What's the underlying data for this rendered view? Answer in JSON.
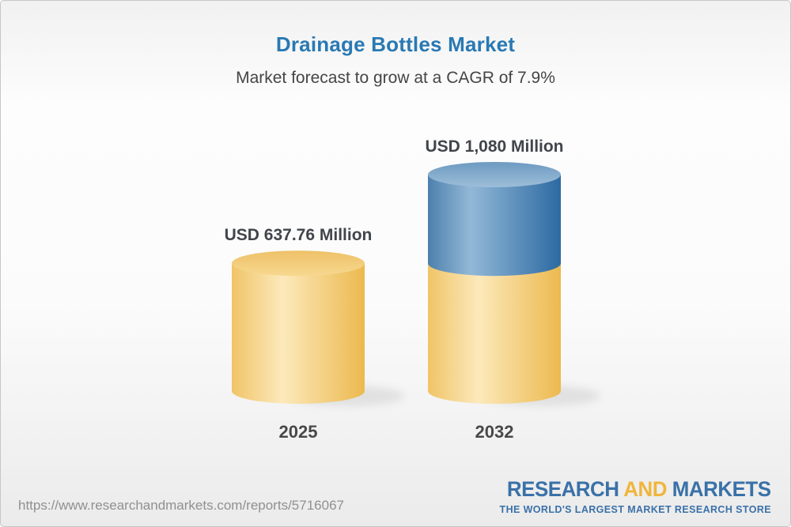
{
  "header": {
    "title": "Drainage Bottles Market",
    "subtitle": "Market forecast to grow at a CAGR of 7.9%"
  },
  "chart_data": {
    "type": "bar",
    "variant": "3d-cylinder-stacked",
    "title": "Drainage Bottles Market",
    "subtitle": "Market forecast to grow at a CAGR of 7.9%",
    "unit": "USD Million",
    "cagr_percent": 7.9,
    "categories": [
      "2025",
      "2032"
    ],
    "values": [
      637.76,
      1080
    ],
    "value_labels": [
      "USD 637.76 Million",
      "USD 1,080 Million"
    ],
    "ylim": [
      0,
      1080
    ],
    "legend": "none",
    "grid": "off",
    "notes": "2032 cylinder is stacked: yellow lower segment equals the 2025 value of 637.76, blue upper segment shows growth up to 1,080.",
    "colors": {
      "base_segment": "#f3c96f",
      "growth_segment": "#5c8db8",
      "base_gradient": [
        "#f0c467",
        "#fce9bb",
        "#ecb94f"
      ],
      "base_top": [
        "#eec168",
        "#f7d88f"
      ],
      "growth_gradient": [
        "#4d80ad",
        "#93b8d7",
        "#2c6aa2"
      ],
      "growth_top": [
        "#6d9ac1",
        "#9dbed9"
      ]
    }
  },
  "colors": {
    "title_blue": "#2979b3",
    "text_dark": "#474747",
    "url_gray": "#909090",
    "logo_blue": "#3a71a8",
    "logo_gold": "#f0b53c"
  },
  "footer": {
    "url": "https://www.researchandmarkets.com/reports/5716067",
    "logo": {
      "part1": "RESEARCH",
      "part2": "AND",
      "part3": "MARKETS",
      "tagline": "THE WORLD'S LARGEST MARKET RESEARCH STORE"
    }
  }
}
